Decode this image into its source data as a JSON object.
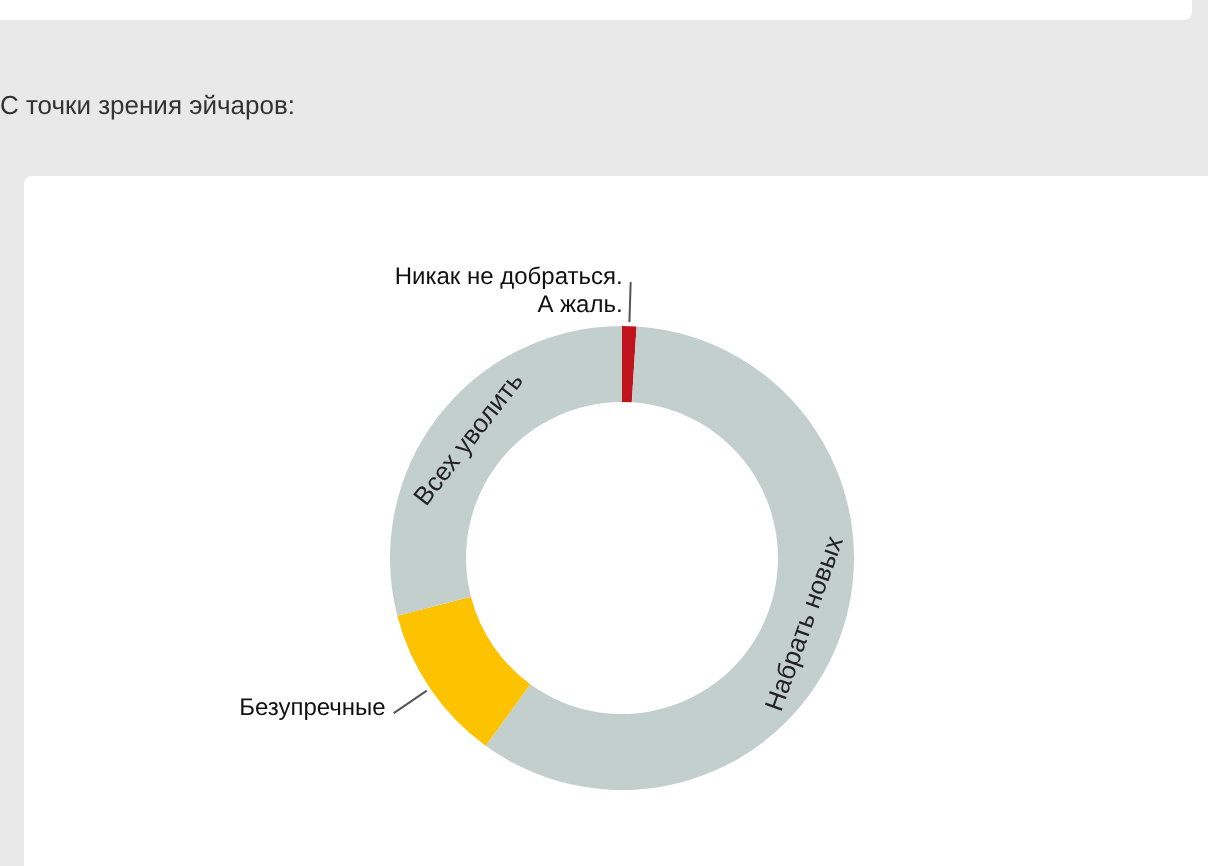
{
  "chart_data": {
    "type": "donut",
    "title": "С точки зрения эйчаров:",
    "categories": [
      "Никак не добраться. А жаль.",
      "Набрать новых",
      "Безупречные",
      "Всех уволить"
    ],
    "values": [
      1,
      59,
      11,
      29
    ],
    "colors": [
      "#c0141c",
      "#c3cfcc",
      "#fdc300",
      "#c3cfcc"
    ]
  }
}
